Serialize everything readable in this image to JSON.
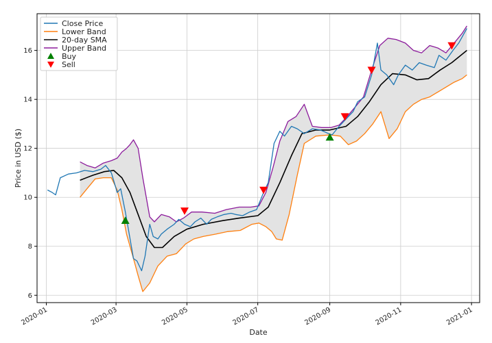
{
  "chart_data": {
    "type": "line",
    "title": "",
    "xlabel": "Date",
    "ylabel": "Price in USD ($)",
    "grid": true,
    "legend_position": "top-left",
    "ylim": [
      5.7,
      17.5
    ],
    "xlim": [
      "2019-12-24",
      "2021-01-08"
    ],
    "x_ticks": [
      "2020-01",
      "2020-03",
      "2020-05",
      "2020-07",
      "2020-09",
      "2020-11",
      "2021-01"
    ],
    "y_ticks": [
      6,
      8,
      10,
      12,
      14,
      16
    ],
    "band_fill_color": "#e3e3e3",
    "highlight_fill_color": "#f0a0b8",
    "series": [
      {
        "name": "Close Price",
        "color": "#1f77b4",
        "x": [
          "2020-01-02",
          "2020-01-06",
          "2020-01-09",
          "2020-01-13",
          "2020-01-20",
          "2020-01-27",
          "2020-02-03",
          "2020-02-10",
          "2020-02-17",
          "2020-02-21",
          "2020-02-26",
          "2020-03-02",
          "2020-03-05",
          "2020-03-09",
          "2020-03-12",
          "2020-03-16",
          "2020-03-19",
          "2020-03-23",
          "2020-03-26",
          "2020-03-30",
          "2020-04-02",
          "2020-04-06",
          "2020-04-09",
          "2020-04-14",
          "2020-04-20",
          "2020-04-24",
          "2020-04-29",
          "2020-05-04",
          "2020-05-08",
          "2020-05-13",
          "2020-05-18",
          "2020-05-22",
          "2020-05-27",
          "2020-06-02",
          "2020-06-08",
          "2020-06-12",
          "2020-06-18",
          "2020-06-24",
          "2020-06-30",
          "2020-07-06",
          "2020-07-10",
          "2020-07-15",
          "2020-07-20",
          "2020-07-24",
          "2020-07-30",
          "2020-08-04",
          "2020-08-10",
          "2020-08-17",
          "2020-08-24",
          "2020-08-31",
          "2020-09-03",
          "2020-09-09",
          "2020-09-15",
          "2020-09-21",
          "2020-09-25",
          "2020-10-01",
          "2020-10-07",
          "2020-10-12",
          "2020-10-15",
          "2020-10-20",
          "2020-10-26",
          "2020-10-30",
          "2020-11-05",
          "2020-11-11",
          "2020-11-17",
          "2020-11-23",
          "2020-11-30",
          "2020-12-04",
          "2020-12-10",
          "2020-12-16",
          "2020-12-21",
          "2020-12-28"
        ],
        "values": [
          10.3,
          10.2,
          10.1,
          10.8,
          10.95,
          11.0,
          11.1,
          11.05,
          11.15,
          11.3,
          11.0,
          10.2,
          10.35,
          9.4,
          8.6,
          7.5,
          7.4,
          7.0,
          7.6,
          8.9,
          8.4,
          8.3,
          8.5,
          8.7,
          8.9,
          9.1,
          8.9,
          8.8,
          9.0,
          9.15,
          8.9,
          9.1,
          9.2,
          9.3,
          9.35,
          9.3,
          9.25,
          9.4,
          9.5,
          10.2,
          10.6,
          12.2,
          12.7,
          12.5,
          12.9,
          12.8,
          12.6,
          12.8,
          12.75,
          12.6,
          12.55,
          12.9,
          13.2,
          13.5,
          13.9,
          14.1,
          15.0,
          16.3,
          15.2,
          15.0,
          14.6,
          15.0,
          15.4,
          15.2,
          15.5,
          15.4,
          15.3,
          15.8,
          15.6,
          16.0,
          16.3,
          16.9
        ]
      },
      {
        "name": "Lower Band",
        "color": "#ff7f0e",
        "x": [
          "2020-01-30",
          "2020-02-05",
          "2020-02-12",
          "2020-02-19",
          "2020-02-26",
          "2020-03-02",
          "2020-03-06",
          "2020-03-10",
          "2020-03-16",
          "2020-03-20",
          "2020-03-24",
          "2020-03-30",
          "2020-04-06",
          "2020-04-14",
          "2020-04-22",
          "2020-04-30",
          "2020-05-07",
          "2020-05-15",
          "2020-05-26",
          "2020-06-05",
          "2020-06-16",
          "2020-06-26",
          "2020-07-02",
          "2020-07-08",
          "2020-07-13",
          "2020-07-17",
          "2020-07-22",
          "2020-07-28",
          "2020-08-04",
          "2020-08-10",
          "2020-08-20",
          "2020-09-01",
          "2020-09-10",
          "2020-09-17",
          "2020-09-24",
          "2020-10-01",
          "2020-10-08",
          "2020-10-15",
          "2020-10-22",
          "2020-10-29",
          "2020-11-05",
          "2020-11-12",
          "2020-11-19",
          "2020-11-26",
          "2020-12-03",
          "2020-12-10",
          "2020-12-17",
          "2020-12-24",
          "2020-12-28"
        ],
        "values": [
          10.0,
          10.35,
          10.75,
          10.8,
          10.8,
          10.3,
          9.5,
          8.5,
          7.5,
          6.8,
          6.15,
          6.5,
          7.2,
          7.6,
          7.7,
          8.1,
          8.3,
          8.4,
          8.5,
          8.6,
          8.65,
          8.9,
          8.95,
          8.8,
          8.6,
          8.3,
          8.25,
          9.3,
          10.9,
          12.2,
          12.5,
          12.55,
          12.5,
          12.15,
          12.3,
          12.6,
          13.0,
          13.5,
          12.4,
          12.8,
          13.5,
          13.8,
          14.0,
          14.1,
          14.3,
          14.5,
          14.7,
          14.85,
          15.0
        ]
      },
      {
        "name": "20-day SMA",
        "color": "#000000",
        "x": [
          "2020-01-30",
          "2020-02-10",
          "2020-02-20",
          "2020-02-28",
          "2020-03-06",
          "2020-03-13",
          "2020-03-20",
          "2020-03-27",
          "2020-04-03",
          "2020-04-10",
          "2020-04-20",
          "2020-05-01",
          "2020-05-15",
          "2020-06-01",
          "2020-06-15",
          "2020-07-01",
          "2020-07-10",
          "2020-07-20",
          "2020-07-30",
          "2020-08-08",
          "2020-08-20",
          "2020-09-01",
          "2020-09-15",
          "2020-09-25",
          "2020-10-05",
          "2020-10-15",
          "2020-10-25",
          "2020-11-05",
          "2020-11-15",
          "2020-11-25",
          "2020-12-05",
          "2020-12-15",
          "2020-12-28"
        ],
        "values": [
          10.7,
          10.9,
          11.05,
          11.1,
          10.8,
          10.2,
          9.3,
          8.4,
          7.95,
          7.95,
          8.4,
          8.7,
          8.9,
          9.05,
          9.15,
          9.25,
          9.6,
          10.6,
          11.7,
          12.6,
          12.75,
          12.75,
          12.9,
          13.3,
          13.9,
          14.6,
          15.05,
          15.0,
          14.8,
          14.85,
          15.2,
          15.5,
          16.0
        ]
      },
      {
        "name": "Upper Band",
        "color": "#8b1a9b",
        "x": [
          "2020-01-30",
          "2020-02-05",
          "2020-02-12",
          "2020-02-19",
          "2020-02-26",
          "2020-03-02",
          "2020-03-06",
          "2020-03-10",
          "2020-03-13",
          "2020-03-16",
          "2020-03-20",
          "2020-03-24",
          "2020-03-30",
          "2020-04-03",
          "2020-04-09",
          "2020-04-16",
          "2020-04-22",
          "2020-04-28",
          "2020-05-05",
          "2020-05-14",
          "2020-05-25",
          "2020-06-04",
          "2020-06-15",
          "2020-06-25",
          "2020-07-02",
          "2020-07-08",
          "2020-07-14",
          "2020-07-20",
          "2020-07-27",
          "2020-08-03",
          "2020-08-10",
          "2020-08-17",
          "2020-08-25",
          "2020-09-02",
          "2020-09-09",
          "2020-09-16",
          "2020-09-23",
          "2020-09-30",
          "2020-10-07",
          "2020-10-14",
          "2020-10-21",
          "2020-10-28",
          "2020-11-05",
          "2020-11-12",
          "2020-11-19",
          "2020-11-26",
          "2020-12-03",
          "2020-12-10",
          "2020-12-17",
          "2020-12-24",
          "2020-12-28"
        ],
        "values": [
          11.45,
          11.3,
          11.2,
          11.4,
          11.5,
          11.6,
          11.85,
          12.0,
          12.15,
          12.35,
          12.0,
          10.8,
          9.2,
          9.0,
          9.3,
          9.2,
          9.0,
          9.15,
          9.4,
          9.4,
          9.35,
          9.5,
          9.6,
          9.6,
          9.65,
          10.2,
          11.2,
          12.3,
          13.1,
          13.3,
          13.8,
          12.9,
          12.85,
          12.85,
          12.95,
          13.3,
          13.7,
          14.1,
          15.2,
          16.2,
          16.5,
          16.45,
          16.3,
          16.0,
          15.9,
          16.2,
          16.1,
          15.9,
          16.3,
          16.7,
          17.0
        ]
      }
    ],
    "markers": [
      {
        "name": "Buy",
        "shape": "triangle-up",
        "color": "#008000",
        "points": [
          {
            "x": "2020-03-09",
            "y": 9.05
          },
          {
            "x": "2020-09-01",
            "y": 12.45
          }
        ]
      },
      {
        "name": "Sell",
        "shape": "triangle-down",
        "color": "#ff0000",
        "points": [
          {
            "x": "2020-04-29",
            "y": 9.45
          },
          {
            "x": "2020-07-06",
            "y": 10.3
          },
          {
            "x": "2020-09-14",
            "y": 13.3
          },
          {
            "x": "2020-10-07",
            "y": 15.2
          },
          {
            "x": "2020-12-15",
            "y": 16.2
          }
        ]
      }
    ]
  }
}
